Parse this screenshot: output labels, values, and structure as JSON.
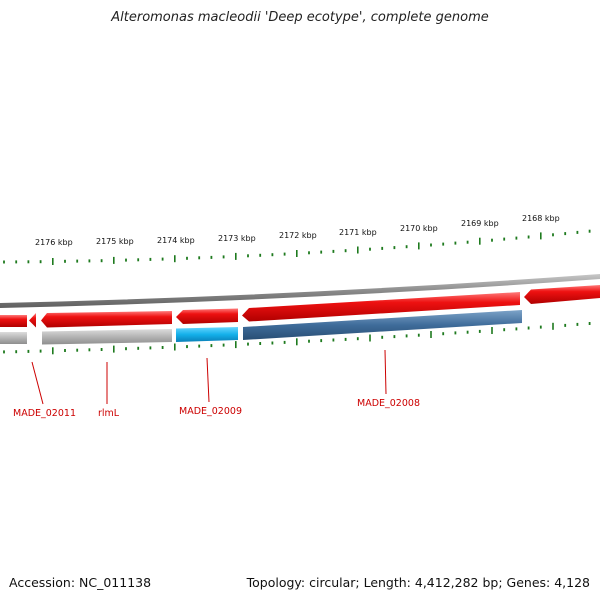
{
  "title": "Alteromonas macleodii 'Deep ecotype', complete genome",
  "footer": {
    "accession": "Accession: NC_011138",
    "summary": "Topology: circular; Length: 4,412,282 bp; Genes: 4,128"
  },
  "ruler_labels": [
    "2176 kbp",
    "2175 kbp",
    "2174 kbp",
    "2173 kbp",
    "2172 kbp",
    "2171 kbp",
    "2170 kbp",
    "2169 kbp",
    "2168 kbp"
  ],
  "gene_labels": [
    "MADE_02011",
    "rlmL",
    "MADE_02009",
    "MADE_02008"
  ],
  "colors": {
    "forward_gene": "#e8191c",
    "reverse_gene": "#b5b5b5",
    "highlight_gene": "#1ab2ea",
    "reverse_gene_blue": "#3d6a99",
    "backbone": "#8a8a8a",
    "tick": "#1e7a1e",
    "label": "#cc0000"
  }
}
